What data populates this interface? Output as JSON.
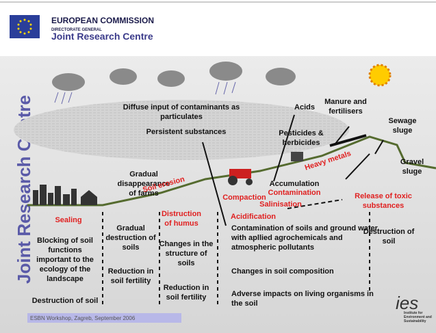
{
  "header": {
    "organisation": "EUROPEAN COMMISSION",
    "directorate": "DIRECTORATE GENERAL",
    "centre": "Joint Research Centre"
  },
  "side_title": "Joint Research Centre",
  "labels": [
    {
      "lines": [
        "Diffuse input of contaminants as",
        "particulates"
      ],
      "color": "#111111"
    },
    {
      "lines": [
        "Acids"
      ],
      "color": "#111111"
    },
    {
      "lines": [
        "Manure and",
        "fertilisers"
      ],
      "color": "#111111"
    },
    {
      "lines": [
        "Sewage",
        "sluge"
      ],
      "color": "#111111"
    },
    {
      "lines": [
        "Persistent substances"
      ],
      "color": "#111111"
    },
    {
      "lines": [
        "Pesticides &",
        "herbicides"
      ],
      "color": "#111111"
    },
    {
      "lines": [
        "Heavy metals"
      ],
      "color": "#e02020"
    },
    {
      "lines": [
        "Gradual",
        "disappearance",
        "of farms"
      ],
      "color": "#111111"
    },
    {
      "lines": [
        "Soil erosion"
      ],
      "color": "#e02020"
    },
    {
      "lines": [
        "Gravel",
        "sluge"
      ],
      "color": "#111111"
    },
    {
      "lines": [
        "Accumulation"
      ],
      "color": "#111111"
    },
    {
      "lines": [
        "Contamination"
      ],
      "color": "#e02020"
    },
    {
      "lines": [
        "Compaction"
      ],
      "color": "#e02020"
    },
    {
      "lines": [
        "Salinisation"
      ],
      "color": "#e02020"
    },
    {
      "lines": [
        "Acidification"
      ],
      "color": "#e02020"
    },
    {
      "lines": [
        "Release of toxic",
        "substances"
      ],
      "color": "#e02020"
    },
    {
      "lines": [
        "Sealing"
      ],
      "color": "#e02020"
    },
    {
      "lines": [
        "Gradual",
        "destruction of",
        "soils"
      ],
      "color": "#111111"
    },
    {
      "lines": [
        "Distruction",
        "of humus"
      ],
      "color": "#e02020"
    },
    {
      "lines": [
        "Contamination of soils and ground water",
        "with apllied agrochemicals and",
        "atmospheric pollutants"
      ],
      "color": "#111111"
    },
    {
      "lines": [
        "Destruction of",
        "soil"
      ],
      "color": "#111111"
    },
    {
      "lines": [
        "Blocking of soil",
        "functions",
        "important to the",
        "ecology of the",
        "landscape"
      ],
      "color": "#111111"
    },
    {
      "lines": [
        "Changes in the",
        "structure of",
        "soils"
      ],
      "color": "#111111"
    },
    {
      "lines": [
        "Changes in soil composition"
      ],
      "color": "#111111"
    },
    {
      "lines": [
        "Reduction in",
        "soil fertility"
      ],
      "color": "#111111"
    },
    {
      "lines": [
        "Reduction in",
        "soil fertility"
      ],
      "color": "#111111"
    },
    {
      "lines": [
        "Adverse impacts on living organisms in",
        "the soil"
      ],
      "color": "#111111"
    },
    {
      "lines": [
        "Destruction of soil"
      ],
      "color": "#111111"
    }
  ],
  "footer": "ESBN Workshop, Zagreb, September 2006",
  "logo": "ies",
  "logo_subtitle": [
    "Institute for",
    "Environment and",
    "Sustainability"
  ]
}
